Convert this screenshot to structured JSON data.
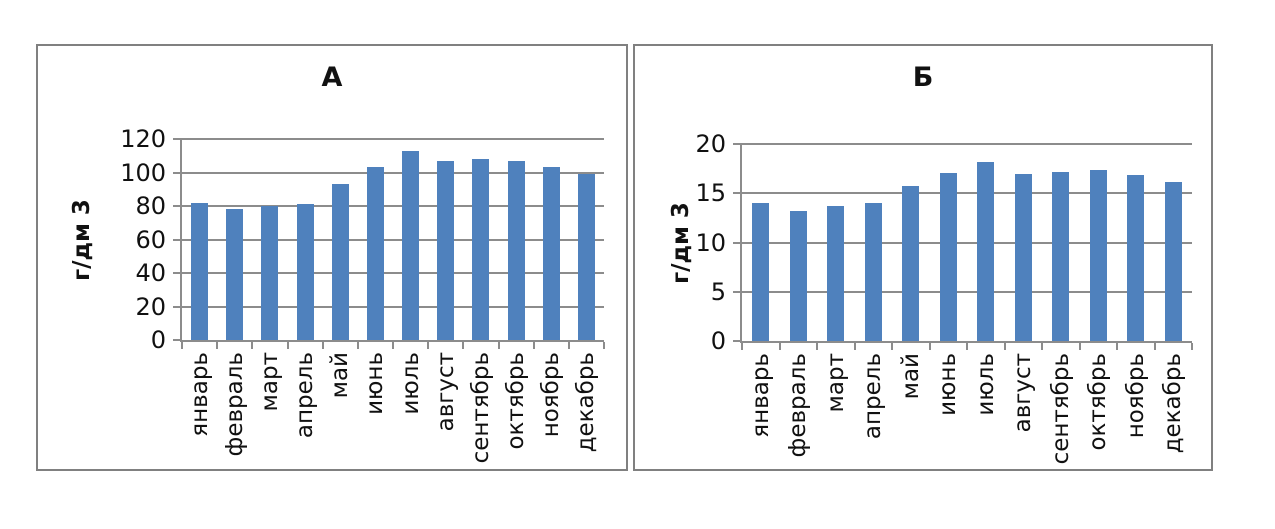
{
  "page": {
    "background": "#ffffff"
  },
  "colors": {
    "bar_fill": "#4f81bd",
    "gridline": "#8c8c8c",
    "axis": "#8c8c8c",
    "panel_border": "#808080",
    "text": "#111111"
  },
  "chart_data": [
    {
      "type": "bar",
      "title": "А",
      "ylabel": "г/дм 3",
      "xlabel": "",
      "categories": [
        "январь",
        "февраль",
        "март",
        "апрель",
        "май",
        "июнь",
        "июль",
        "август",
        "сентябрь",
        "октябрь",
        "ноябрь",
        "декабрь"
      ],
      "values": [
        82,
        78,
        80,
        81,
        93,
        103,
        113,
        107,
        108,
        107,
        103,
        99
      ],
      "ylim": [
        0,
        120
      ],
      "yticks": [
        0,
        20,
        40,
        60,
        80,
        100,
        120
      ],
      "grid": true,
      "legend": "none"
    },
    {
      "type": "bar",
      "title": "Б",
      "ylabel": "г/дм 3",
      "xlabel": "",
      "categories": [
        "январь",
        "февраль",
        "март",
        "апрель",
        "май",
        "июнь",
        "июль",
        "август",
        "сентябрь",
        "октябрь",
        "ноябрь",
        "декабрь"
      ],
      "values": [
        14,
        13.2,
        13.7,
        14,
        15.7,
        17.1,
        18.2,
        17,
        17.2,
        17.4,
        16.9,
        16.1
      ],
      "ylim": [
        0,
        20
      ],
      "yticks": [
        0,
        5,
        10,
        15,
        20
      ],
      "grid": true,
      "legend": "none"
    }
  ]
}
